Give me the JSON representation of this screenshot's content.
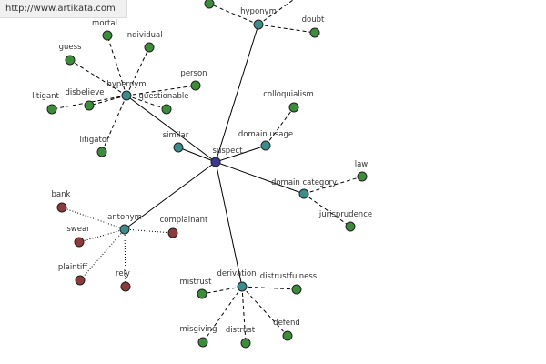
{
  "watermark": "http://www.artikata.com",
  "nodes": [
    {
      "label": "suspect"
    },
    {
      "label": "hyponym"
    },
    {
      "label": "hypernym"
    },
    {
      "label": "similar"
    },
    {
      "label": "domain usage"
    },
    {
      "label": "domain category"
    },
    {
      "label": "antonym"
    },
    {
      "label": "derivation"
    },
    {
      "label": "doubt"
    },
    {
      "label": "mortal"
    },
    {
      "label": "individual"
    },
    {
      "label": "guess"
    },
    {
      "label": "person"
    },
    {
      "label": "questionable"
    },
    {
      "label": "disbelieve"
    },
    {
      "label": "litigant"
    },
    {
      "label": "litigator"
    },
    {
      "label": "colloquialism"
    },
    {
      "label": "law"
    },
    {
      "label": "jurisprudence"
    },
    {
      "label": "bank"
    },
    {
      "label": "swear"
    },
    {
      "label": "complainant"
    },
    {
      "label": "plaintiff"
    },
    {
      "label": "rely"
    },
    {
      "label": "mistrust"
    },
    {
      "label": "distrustfulness"
    },
    {
      "label": "misgiving"
    },
    {
      "label": "distrust"
    },
    {
      "label": "defend"
    }
  ]
}
